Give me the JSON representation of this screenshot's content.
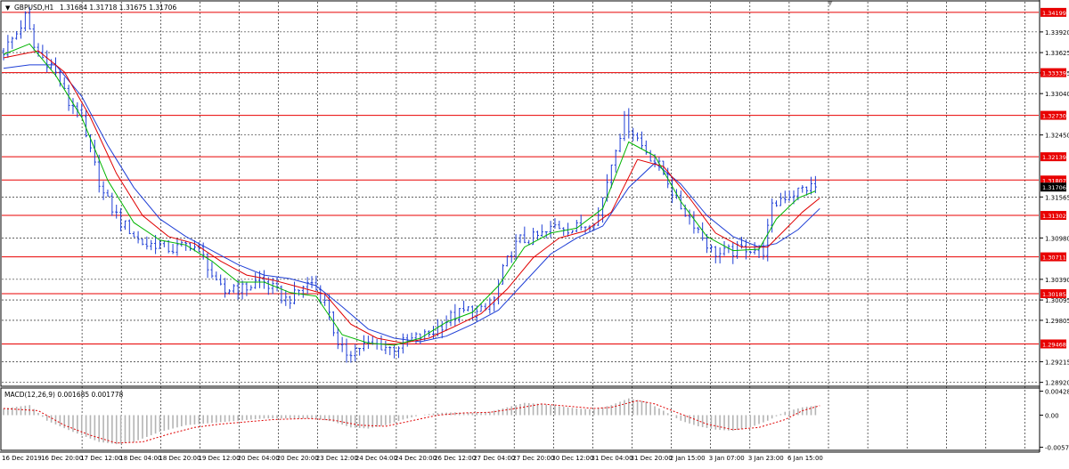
{
  "header": {
    "symbol": "GBPUSD,H1",
    "ohlc": "1.31684 1.31718 1.31675 1.31706"
  },
  "macd_header": {
    "label": "MACD(12,26,9) 0.001685 0.001778"
  },
  "colors": {
    "background": "#ffffff",
    "grid": "#000000",
    "candles": "#1f3fd6",
    "level_lines": "#e80000",
    "ma_fast": "#00b400",
    "ma_mid": "#e00000",
    "ma_slow": "#1f3fd6",
    "macd_hist": "#b4b4b4",
    "macd_signal": "#e00000"
  },
  "chart_data": [
    {
      "type": "candlestick",
      "title": "GBPUSD,H1",
      "ylim": [
        1.2889,
        1.3435
      ],
      "price_ticks": [
        "1.33920",
        "1.33625",
        "1.33335",
        "1.33040",
        "1.32450",
        "1.31565",
        "1.30980",
        "1.30390",
        "1.30095",
        "1.29805",
        "1.29215",
        "1.28920"
      ],
      "price_tick_values": [
        1.3392,
        1.33625,
        1.33335,
        1.3304,
        1.3245,
        1.31565,
        1.3098,
        1.3039,
        1.30095,
        1.29805,
        1.29215,
        1.2892
      ],
      "levels": [
        "1.34199",
        "1.33339",
        "1.32730",
        "1.32139",
        "1.31807",
        "1.31302",
        "1.30711",
        "1.30185",
        "1.29468"
      ],
      "level_values": [
        1.34199,
        1.33339,
        1.3273,
        1.32139,
        1.31807,
        1.31302,
        1.30711,
        1.30185,
        1.29468
      ],
      "current_price": "1.31706",
      "current_price_value": 1.31706,
      "x_labels": [
        "16 Dec 2019",
        "16 Dec 20:00",
        "17 Dec 12:00",
        "18 Dec 04:00",
        "18 Dec 20:00",
        "19 Dec 12:00",
        "20 Dec 04:00",
        "20 Dec 20:00",
        "23 Dec 12:00",
        "24 Dec 04:00",
        "24 Dec 20:00",
        "26 Dec 12:00",
        "27 Dec 04:00",
        "27 Dec 20:00",
        "30 Dec 12:00",
        "31 Dec 04:00",
        "31 Dec 20:00",
        "2 Jan 15:00",
        "3 Jan 07:00",
        "3 Jan 23:00",
        "6 Jan 15:00"
      ],
      "close_path": [
        [
          0,
          1.3365
        ],
        [
          3,
          1.339
        ],
        [
          5,
          1.3413
        ],
        [
          7,
          1.337
        ],
        [
          9,
          1.3355
        ],
        [
          11,
          1.3345
        ],
        [
          13,
          1.332
        ],
        [
          15,
          1.329
        ],
        [
          17,
          1.3285
        ],
        [
          19,
          1.324
        ],
        [
          21,
          1.32
        ],
        [
          23,
          1.316
        ],
        [
          25,
          1.314
        ],
        [
          27,
          1.312
        ],
        [
          29,
          1.311
        ],
        [
          31,
          1.3095
        ],
        [
          33,
          1.3088
        ],
        [
          35,
          1.309
        ],
        [
          37,
          1.3085
        ],
        [
          39,
          1.3082
        ],
        [
          41,
          1.3085
        ],
        [
          43,
          1.309
        ],
        [
          45,
          1.308
        ],
        [
          47,
          1.306
        ],
        [
          49,
          1.303
        ],
        [
          51,
          1.302
        ],
        [
          53,
          1.303
        ],
        [
          55,
          1.3025
        ],
        [
          57,
          1.303
        ],
        [
          59,
          1.304
        ],
        [
          61,
          1.303
        ],
        [
          63,
          1.302
        ],
        [
          65,
          1.301
        ],
        [
          67,
          1.3015
        ],
        [
          69,
          1.303
        ],
        [
          71,
          1.3035
        ],
        [
          73,
          1.3015
        ],
        [
          75,
          1.2995
        ],
        [
          77,
          1.294
        ],
        [
          79,
          1.2935
        ],
        [
          81,
          1.294
        ],
        [
          83,
          1.2945
        ],
        [
          85,
          1.2945
        ],
        [
          87,
          1.2945
        ],
        [
          89,
          1.294
        ],
        [
          91,
          1.2945
        ],
        [
          93,
          1.295
        ],
        [
          95,
          1.2955
        ],
        [
          97,
          1.2958
        ],
        [
          99,
          1.2965
        ],
        [
          101,
          1.2975
        ],
        [
          103,
          1.2985
        ],
        [
          105,
          1.299
        ],
        [
          107,
          1.2995
        ],
        [
          109,
          1.299
        ],
        [
          111,
          1.2995
        ],
        [
          113,
          1.301
        ],
        [
          115,
          1.305
        ],
        [
          117,
          1.308
        ],
        [
          119,
          1.3095
        ],
        [
          121,
          1.3095
        ],
        [
          123,
          1.31
        ],
        [
          125,
          1.3105
        ],
        [
          127,
          1.3115
        ],
        [
          129,
          1.3115
        ],
        [
          131,
          1.311
        ],
        [
          133,
          1.3115
        ],
        [
          135,
          1.312
        ],
        [
          137,
          1.313
        ],
        [
          139,
          1.318
        ],
        [
          141,
          1.323
        ],
        [
          143,
          1.3265
        ],
        [
          145,
          1.325
        ],
        [
          147,
          1.323
        ],
        [
          149,
          1.3215
        ],
        [
          151,
          1.32
        ],
        [
          153,
          1.318
        ],
        [
          155,
          1.315
        ],
        [
          157,
          1.3135
        ],
        [
          159,
          1.312
        ],
        [
          161,
          1.31
        ],
        [
          163,
          1.308
        ],
        [
          165,
          1.3075
        ],
        [
          167,
          1.3078
        ],
        [
          169,
          1.308
        ],
        [
          171,
          1.3085
        ],
        [
          173,
          1.3082
        ],
        [
          175,
          1.308
        ],
        [
          177,
          1.314
        ],
        [
          179,
          1.3155
        ],
        [
          181,
          1.316
        ],
        [
          183,
          1.3165
        ],
        [
          185,
          1.317
        ],
        [
          187,
          1.31706
        ]
      ],
      "ma_fast_path": [
        [
          0,
          1.336
        ],
        [
          6,
          1.3375
        ],
        [
          12,
          1.333
        ],
        [
          18,
          1.327
        ],
        [
          24,
          1.318
        ],
        [
          30,
          1.312
        ],
        [
          36,
          1.3095
        ],
        [
          42,
          1.3088
        ],
        [
          48,
          1.3065
        ],
        [
          54,
          1.3035
        ],
        [
          60,
          1.3035
        ],
        [
          66,
          1.302
        ],
        [
          72,
          1.3015
        ],
        [
          78,
          1.296
        ],
        [
          84,
          1.2948
        ],
        [
          90,
          1.2945
        ],
        [
          96,
          1.2955
        ],
        [
          102,
          1.2978
        ],
        [
          108,
          1.2992
        ],
        [
          114,
          1.303
        ],
        [
          120,
          1.3085
        ],
        [
          126,
          1.3105
        ],
        [
          132,
          1.3112
        ],
        [
          138,
          1.314
        ],
        [
          144,
          1.3235
        ],
        [
          150,
          1.3215
        ],
        [
          156,
          1.315
        ],
        [
          162,
          1.31
        ],
        [
          168,
          1.308
        ],
        [
          174,
          1.3082
        ],
        [
          178,
          1.3125
        ],
        [
          183,
          1.3155
        ],
        [
          187,
          1.3165
        ]
      ],
      "ma_mid_path": [
        [
          0,
          1.3355
        ],
        [
          8,
          1.3365
        ],
        [
          14,
          1.3335
        ],
        [
          20,
          1.327
        ],
        [
          26,
          1.319
        ],
        [
          32,
          1.313
        ],
        [
          38,
          1.31
        ],
        [
          44,
          1.309
        ],
        [
          50,
          1.3065
        ],
        [
          56,
          1.3045
        ],
        [
          62,
          1.3038
        ],
        [
          68,
          1.3028
        ],
        [
          74,
          1.3018
        ],
        [
          80,
          1.2975
        ],
        [
          86,
          1.2955
        ],
        [
          92,
          1.2948
        ],
        [
          98,
          1.2955
        ],
        [
          104,
          1.2972
        ],
        [
          110,
          1.299
        ],
        [
          116,
          1.3025
        ],
        [
          122,
          1.307
        ],
        [
          128,
          1.3098
        ],
        [
          134,
          1.3108
        ],
        [
          140,
          1.3135
        ],
        [
          146,
          1.321
        ],
        [
          152,
          1.32
        ],
        [
          158,
          1.3155
        ],
        [
          164,
          1.3105
        ],
        [
          170,
          1.3085
        ],
        [
          176,
          1.3085
        ],
        [
          180,
          1.311
        ],
        [
          184,
          1.3135
        ],
        [
          188,
          1.3155
        ]
      ],
      "ma_slow_path": [
        [
          0,
          1.334
        ],
        [
          6,
          1.3345
        ],
        [
          12,
          1.3345
        ],
        [
          18,
          1.33
        ],
        [
          24,
          1.323
        ],
        [
          30,
          1.317
        ],
        [
          36,
          1.3125
        ],
        [
          42,
          1.31
        ],
        [
          48,
          1.308
        ],
        [
          54,
          1.306
        ],
        [
          60,
          1.3045
        ],
        [
          66,
          1.304
        ],
        [
          72,
          1.303
        ],
        [
          78,
          1.3
        ],
        [
          84,
          1.2968
        ],
        [
          90,
          1.2955
        ],
        [
          96,
          1.295
        ],
        [
          102,
          1.2958
        ],
        [
          108,
          1.2975
        ],
        [
          114,
          1.2995
        ],
        [
          120,
          1.3035
        ],
        [
          126,
          1.3075
        ],
        [
          132,
          1.3098
        ],
        [
          138,
          1.3115
        ],
        [
          144,
          1.317
        ],
        [
          150,
          1.3205
        ],
        [
          156,
          1.3175
        ],
        [
          162,
          1.313
        ],
        [
          168,
          1.31
        ],
        [
          174,
          1.3085
        ],
        [
          178,
          1.309
        ],
        [
          183,
          1.311
        ],
        [
          188,
          1.314
        ]
      ]
    },
    {
      "type": "macd",
      "title": "MACD(12,26,9)",
      "ylim": [
        -0.0063,
        0.0047
      ],
      "ticks": [
        "0.004287",
        "0.00",
        "-0.00575"
      ],
      "tick_values": [
        0.004287,
        0.0,
        -0.00575
      ],
      "hist_path": [
        [
          0,
          0.0012
        ],
        [
          6,
          0.0018
        ],
        [
          10,
          -0.001
        ],
        [
          16,
          -0.003
        ],
        [
          22,
          -0.0048
        ],
        [
          26,
          -0.0052
        ],
        [
          30,
          -0.0048
        ],
        [
          36,
          -0.003
        ],
        [
          42,
          -0.0018
        ],
        [
          48,
          -0.0014
        ],
        [
          54,
          -0.001
        ],
        [
          60,
          -0.0006
        ],
        [
          66,
          -0.0006
        ],
        [
          72,
          -0.0006
        ],
        [
          76,
          -0.0012
        ],
        [
          80,
          -0.0022
        ],
        [
          84,
          -0.0024
        ],
        [
          88,
          -0.0018
        ],
        [
          92,
          -0.0008
        ],
        [
          96,
          0.0
        ],
        [
          100,
          0.0004
        ],
        [
          104,
          0.0005
        ],
        [
          108,
          0.0004
        ],
        [
          112,
          0.0006
        ],
        [
          116,
          0.0014
        ],
        [
          120,
          0.0022
        ],
        [
          124,
          0.002
        ],
        [
          128,
          0.0016
        ],
        [
          132,
          0.0012
        ],
        [
          136,
          0.001
        ],
        [
          140,
          0.0018
        ],
        [
          144,
          0.003
        ],
        [
          148,
          0.0024
        ],
        [
          152,
          0.0008
        ],
        [
          156,
          -0.001
        ],
        [
          160,
          -0.002
        ],
        [
          164,
          -0.0026
        ],
        [
          168,
          -0.0028
        ],
        [
          172,
          -0.0022
        ],
        [
          176,
          -0.001
        ],
        [
          180,
          0.0006
        ],
        [
          184,
          0.0014
        ],
        [
          187,
          0.0017
        ]
      ],
      "signal_path": [
        [
          0,
          0.0012
        ],
        [
          8,
          0.0008
        ],
        [
          14,
          -0.0018
        ],
        [
          20,
          -0.0036
        ],
        [
          26,
          -0.005
        ],
        [
          32,
          -0.0048
        ],
        [
          38,
          -0.0034
        ],
        [
          44,
          -0.0022
        ],
        [
          50,
          -0.0016
        ],
        [
          56,
          -0.0012
        ],
        [
          62,
          -0.0008
        ],
        [
          70,
          -0.0006
        ],
        [
          76,
          -0.0009
        ],
        [
          82,
          -0.0018
        ],
        [
          88,
          -0.002
        ],
        [
          94,
          -0.001
        ],
        [
          100,
          0.0
        ],
        [
          106,
          0.0004
        ],
        [
          112,
          0.0005
        ],
        [
          118,
          0.0012
        ],
        [
          124,
          0.002
        ],
        [
          130,
          0.0016
        ],
        [
          136,
          0.0012
        ],
        [
          140,
          0.0014
        ],
        [
          146,
          0.0026
        ],
        [
          150,
          0.002
        ],
        [
          156,
          0.0002
        ],
        [
          162,
          -0.0016
        ],
        [
          168,
          -0.0026
        ],
        [
          174,
          -0.0022
        ],
        [
          180,
          -0.0008
        ],
        [
          184,
          0.0008
        ],
        [
          188,
          0.0017
        ]
      ]
    }
  ]
}
